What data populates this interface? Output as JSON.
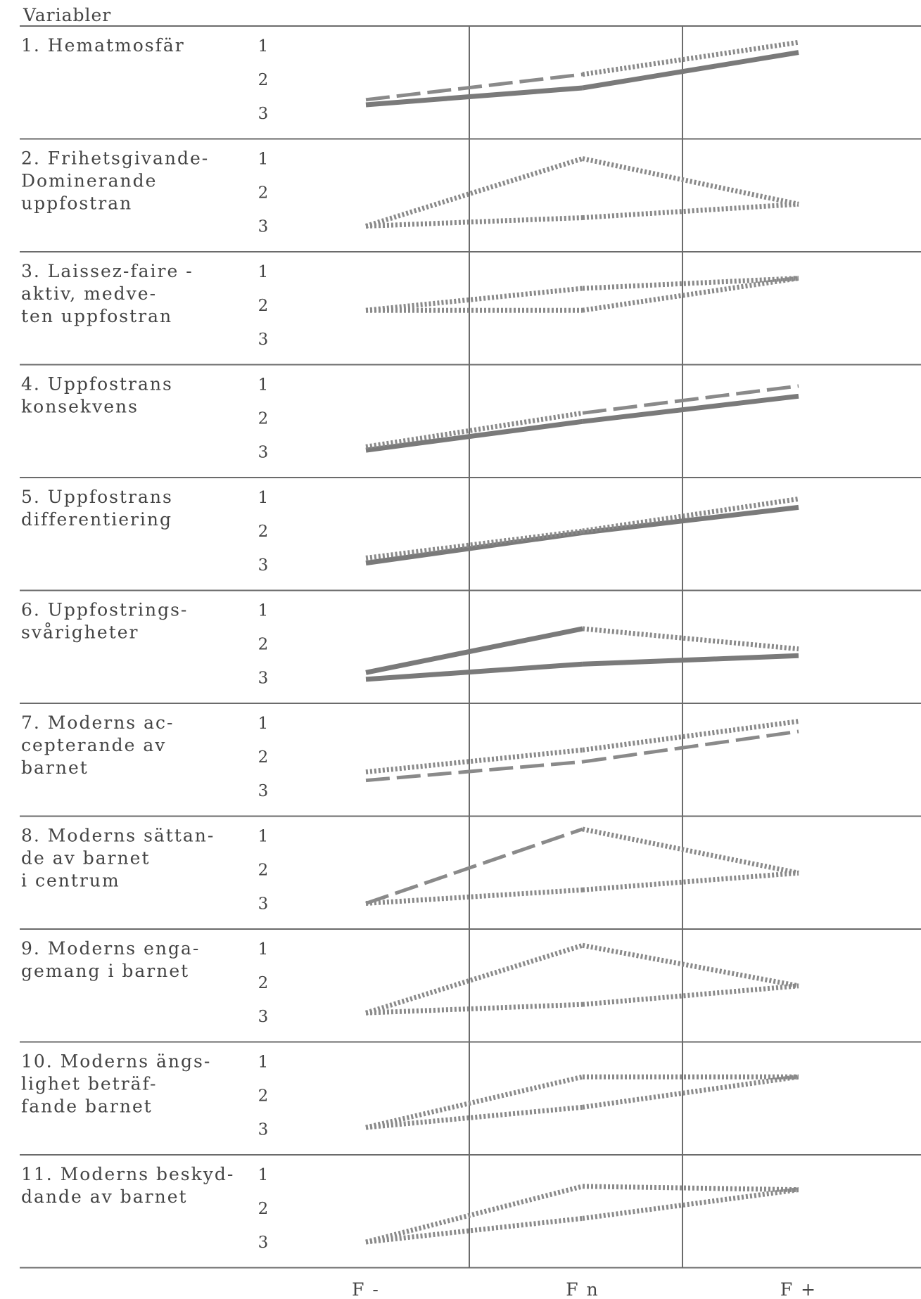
{
  "header": "Variabler",
  "levels": [
    "1",
    "2",
    "3"
  ],
  "x_labels": [
    "F -",
    "F n",
    "F +"
  ],
  "line_styles": {
    "solid": {
      "color": "#7a7a7a"
    },
    "dashed": {
      "color": "#8a8a8a"
    },
    "dotted": {
      "color": "#8a8a8a"
    }
  },
  "rows": [
    {
      "label": [
        "1. Hematmosfär"
      ],
      "lines": [
        {
          "style": "solid",
          "values": [
            2.75,
            2.25,
            1.2
          ],
          "segments": [
            "solid",
            "solid"
          ]
        },
        {
          "style": "dashed",
          "values": [
            2.6,
            1.85,
            0.9
          ],
          "segments": [
            "dashed",
            "dotted"
          ]
        }
      ]
    },
    {
      "label": [
        "2. Frihetsgivande-",
        "Dominerande",
        "uppfostran"
      ],
      "lines": [
        {
          "values": [
            3.0,
            1.0,
            2.35
          ],
          "segments": [
            "dotted",
            "dotted"
          ]
        },
        {
          "values": [
            3.0,
            2.75,
            2.35
          ],
          "segments": [
            "dotted",
            "dotted"
          ]
        }
      ]
    },
    {
      "label": [
        "3. Laissez-faire -",
        "aktiv, medve-",
        "ten uppfostran"
      ],
      "lines": [
        {
          "values": [
            2.15,
            2.15,
            1.2
          ],
          "segments": [
            "dotted",
            "dotted"
          ]
        },
        {
          "values": [
            2.15,
            1.5,
            1.2
          ],
          "segments": [
            "dotted",
            "dotted"
          ]
        }
      ]
    },
    {
      "label": [
        "4. Uppfostrans",
        "konsekvens"
      ],
      "lines": [
        {
          "style": "solid",
          "values": [
            2.95,
            2.1,
            1.35
          ],
          "segments": [
            "solid",
            "solid"
          ]
        },
        {
          "values": [
            2.85,
            1.85,
            1.05
          ],
          "segments": [
            "dotted",
            "dashed"
          ]
        }
      ]
    },
    {
      "label": [
        "5. Uppfostrans",
        "differentiering"
      ],
      "lines": [
        {
          "style": "solid",
          "values": [
            2.95,
            2.05,
            1.3
          ],
          "segments": [
            "solid",
            "solid"
          ]
        },
        {
          "values": [
            2.8,
            2.0,
            1.05
          ],
          "segments": [
            "dotted",
            "dotted"
          ]
        }
      ]
    },
    {
      "label": [
        "6. Uppfostrings-",
        "svårigheter"
      ],
      "lines": [
        {
          "style": "solid",
          "values": [
            2.85,
            1.55,
            2.15
          ],
          "segments": [
            "solid",
            "dotted"
          ]
        },
        {
          "style": "solid",
          "values": [
            3.05,
            2.6,
            2.35
          ],
          "segments": [
            "solid",
            "solid"
          ]
        }
      ]
    },
    {
      "label": [
        "7. Moderns ac-",
        "cepterande av",
        "barnet"
      ],
      "lines": [
        {
          "values": [
            2.45,
            1.8,
            0.95
          ],
          "segments": [
            "dotted",
            "dotted"
          ]
        },
        {
          "style": "dashed",
          "values": [
            2.7,
            2.15,
            1.25
          ],
          "segments": [
            "dashed",
            "dashed"
          ]
        }
      ]
    },
    {
      "label": [
        "8. Moderns sättan-",
        "de av barnet",
        "i centrum"
      ],
      "lines": [
        {
          "values": [
            3.0,
            0.8,
            2.1
          ],
          "segments": [
            "dashed",
            "dotted"
          ]
        },
        {
          "values": [
            3.0,
            2.6,
            2.1
          ],
          "segments": [
            "dotted",
            "dotted"
          ]
        }
      ]
    },
    {
      "label": [
        "9. Moderns enga-",
        "gemang i barnet"
      ],
      "lines": [
        {
          "values": [
            2.9,
            0.9,
            2.1
          ],
          "segments": [
            "dotted",
            "dotted"
          ]
        },
        {
          "values": [
            2.9,
            2.65,
            2.1
          ],
          "segments": [
            "dotted",
            "dotted"
          ]
        }
      ]
    },
    {
      "label": [
        "10. Moderns ängs-",
        "lighet beträf-",
        "fande barnet"
      ],
      "lines": [
        {
          "values": [
            2.95,
            1.45,
            1.45
          ],
          "segments": [
            "dotted",
            "dotted"
          ]
        },
        {
          "values": [
            2.95,
            2.35,
            1.45
          ],
          "segments": [
            "dotted",
            "dotted"
          ]
        }
      ]
    },
    {
      "label": [
        "11. Moderns beskyd-",
        "dande av barnet"
      ],
      "lines": [
        {
          "values": [
            3.0,
            1.35,
            1.45
          ],
          "segments": [
            "dotted",
            "dotted"
          ]
        },
        {
          "values": [
            3.0,
            2.3,
            1.45
          ],
          "segments": [
            "dotted",
            "dotted"
          ]
        }
      ]
    }
  ]
}
